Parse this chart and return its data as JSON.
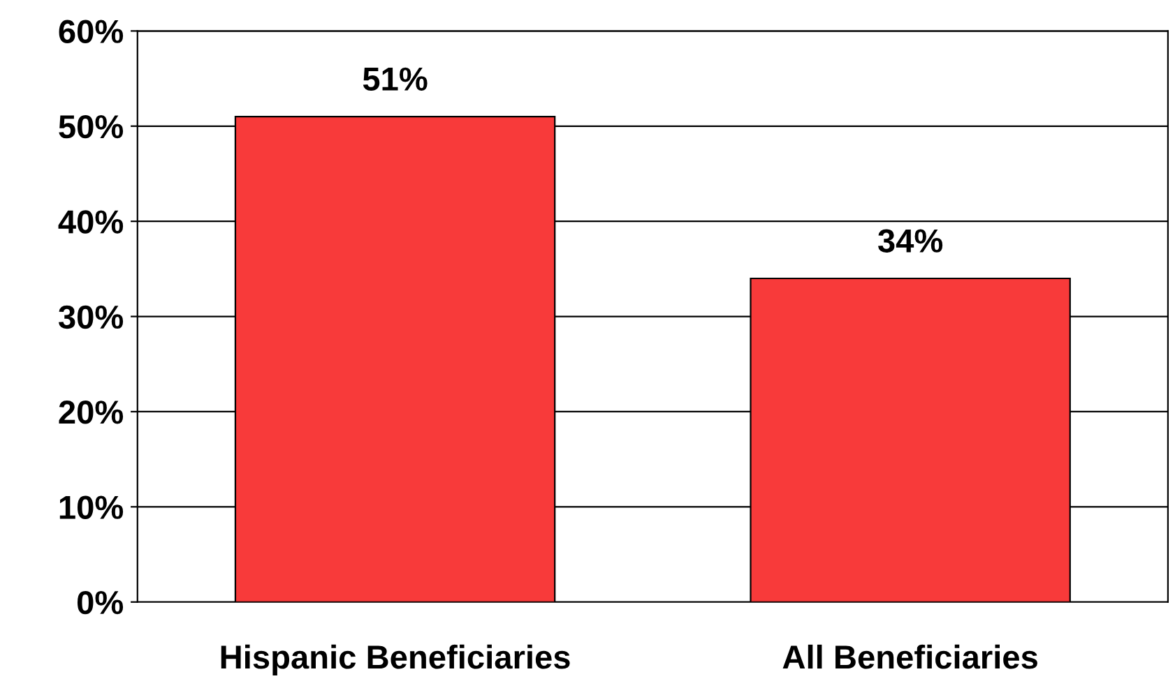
{
  "chart_data": {
    "type": "bar",
    "categories": [
      "Hispanic Beneficiaries",
      "All Beneficiaries"
    ],
    "values": [
      51,
      34
    ],
    "color": "#f83a3a",
    "value_labels": [
      "51%",
      "34%"
    ],
    "ylim": [
      0,
      60
    ],
    "yticks": [
      {
        "value": 0,
        "label": "0%"
      },
      {
        "value": 10,
        "label": "10%"
      },
      {
        "value": 20,
        "label": "20%"
      },
      {
        "value": 30,
        "label": "30%"
      },
      {
        "value": 40,
        "label": "40%"
      },
      {
        "value": 50,
        "label": "50%"
      },
      {
        "value": 60,
        "label": "60%"
      }
    ],
    "grid": "y"
  }
}
